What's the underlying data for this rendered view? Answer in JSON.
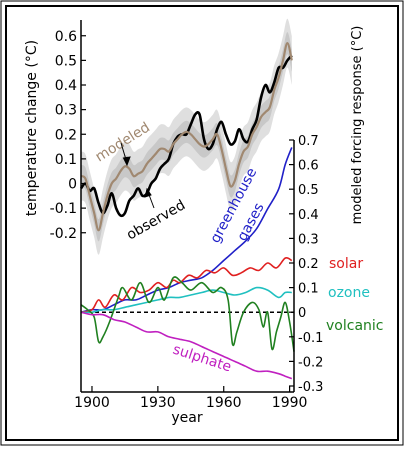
{
  "chart_data": {
    "type": "line",
    "x_axis": {
      "label": "year",
      "range": [
        1895,
        1992
      ],
      "ticks": [
        1900,
        1930,
        1960,
        1990
      ]
    },
    "top_panel": {
      "y_axis": {
        "label": "temperature change (°C)",
        "range": [
          -0.3,
          0.65
        ],
        "ticks": [
          -0.2,
          -0.1,
          0,
          0.1,
          0.2,
          0.3,
          0.4,
          0.5,
          0.6
        ],
        "tick_labels": [
          "-0.2",
          "-0.1",
          "0",
          "0.1",
          "0.2",
          "0.3",
          "0.4",
          "0.5",
          "0.6"
        ]
      },
      "series": [
        {
          "name": "observed",
          "color": "#000000",
          "x": [
            1895,
            1897,
            1899,
            1901,
            1903,
            1905,
            1907,
            1909,
            1911,
            1913,
            1915,
            1917,
            1919,
            1921,
            1923,
            1925,
            1927,
            1929,
            1931,
            1933,
            1935,
            1937,
            1939,
            1941,
            1943,
            1945,
            1947,
            1949,
            1951,
            1953,
            1955,
            1957,
            1959,
            1961,
            1963,
            1965,
            1967,
            1969,
            1971,
            1973,
            1975,
            1977,
            1979,
            1981,
            1983,
            1985,
            1987,
            1989,
            1991
          ],
          "values": [
            -0.02,
            0.0,
            -0.03,
            -0.02,
            -0.08,
            -0.12,
            -0.09,
            -0.04,
            -0.1,
            -0.13,
            -0.12,
            -0.07,
            -0.05,
            -0.02,
            -0.05,
            -0.04,
            0.0,
            0.02,
            0.06,
            0.08,
            0.1,
            0.16,
            0.19,
            0.2,
            0.2,
            0.24,
            0.28,
            0.28,
            0.18,
            0.14,
            0.16,
            0.22,
            0.25,
            0.2,
            0.16,
            0.17,
            0.22,
            0.18,
            0.17,
            0.22,
            0.26,
            0.35,
            0.4,
            0.37,
            0.41,
            0.47,
            0.47,
            0.5,
            0.52
          ]
        },
        {
          "name": "modeled",
          "color": "#a08870",
          "x": [
            1895,
            1897,
            1899,
            1901,
            1903,
            1905,
            1907,
            1909,
            1911,
            1913,
            1915,
            1917,
            1919,
            1921,
            1923,
            1925,
            1927,
            1929,
            1931,
            1933,
            1935,
            1937,
            1939,
            1941,
            1943,
            1945,
            1947,
            1949,
            1951,
            1953,
            1955,
            1957,
            1959,
            1961,
            1963,
            1965,
            1967,
            1969,
            1971,
            1973,
            1975,
            1977,
            1979,
            1981,
            1983,
            1985,
            1987,
            1989,
            1991
          ],
          "values": [
            0.03,
            0.02,
            -0.05,
            -0.12,
            -0.19,
            -0.12,
            -0.05,
            0.0,
            0.02,
            0.05,
            0.07,
            0.06,
            0.03,
            0.04,
            0.05,
            0.08,
            0.1,
            0.12,
            0.14,
            0.14,
            0.13,
            0.16,
            0.18,
            0.2,
            0.21,
            0.2,
            0.18,
            0.16,
            0.15,
            0.16,
            0.18,
            0.2,
            0.14,
            0.06,
            -0.01,
            0.01,
            0.08,
            0.13,
            0.15,
            0.2,
            0.23,
            0.27,
            0.29,
            0.31,
            0.38,
            0.43,
            0.5,
            0.57,
            0.5
          ]
        }
      ],
      "uncertainty_band": {
        "name": "modeled range",
        "color": "#c8c8c8",
        "half_width": 0.045
      },
      "annotations": [
        {
          "text": "modeled",
          "color": "#a08870"
        },
        {
          "text": "observed",
          "color": "#000000"
        }
      ]
    },
    "bottom_panel": {
      "y_axis": {
        "label": "modeled forcing response (°C)",
        "range": [
          -0.3,
          0.7
        ],
        "ticks": [
          0.7,
          0.6,
          0.5,
          0.4,
          0.3,
          0.2,
          0.1,
          0,
          -0.1,
          -0.2,
          -0.3
        ],
        "tick_labels": [
          "0.7",
          "0.6",
          "0.5",
          "0.4",
          "0.3",
          "0.2",
          "0.1",
          "0",
          "-0.1",
          "-0.2",
          "-0.3"
        ]
      },
      "zero_line": {
        "style": "dashed",
        "color": "#000000"
      },
      "series": [
        {
          "name": "greenhouse gases",
          "color": "#2020c8",
          "x": [
            1895,
            1900,
            1905,
            1910,
            1915,
            1920,
            1925,
            1930,
            1935,
            1940,
            1945,
            1950,
            1955,
            1960,
            1965,
            1970,
            1975,
            1980,
            1985,
            1988,
            1991
          ],
          "values": [
            0.0,
            0.01,
            0.01,
            0.03,
            0.05,
            0.05,
            0.07,
            0.09,
            0.1,
            0.12,
            0.13,
            0.14,
            0.17,
            0.21,
            0.25,
            0.29,
            0.34,
            0.42,
            0.5,
            0.6,
            0.67
          ]
        },
        {
          "name": "solar",
          "color": "#e02020",
          "x": [
            1895,
            1900,
            1903,
            1906,
            1910,
            1914,
            1918,
            1922,
            1926,
            1930,
            1934,
            1937,
            1940,
            1944,
            1948,
            1952,
            1956,
            1960,
            1964,
            1968,
            1972,
            1976,
            1980,
            1984,
            1988,
            1991
          ],
          "values": [
            0.0,
            0.01,
            0.05,
            0.02,
            0.07,
            0.05,
            0.1,
            0.08,
            0.09,
            0.12,
            0.1,
            0.13,
            0.12,
            0.15,
            0.14,
            0.17,
            0.16,
            0.18,
            0.15,
            0.16,
            0.18,
            0.17,
            0.2,
            0.18,
            0.22,
            0.21
          ]
        },
        {
          "name": "ozone",
          "color": "#20c0c0",
          "x": [
            1895,
            1900,
            1905,
            1910,
            1915,
            1920,
            1925,
            1930,
            1935,
            1940,
            1945,
            1950,
            1955,
            1960,
            1965,
            1970,
            1975,
            1980,
            1985,
            1988,
            1991
          ],
          "values": [
            0.0,
            0.0,
            0.01,
            0.01,
            0.02,
            0.03,
            0.04,
            0.05,
            0.06,
            0.06,
            0.07,
            0.08,
            0.09,
            0.08,
            0.07,
            0.08,
            0.1,
            0.09,
            0.06,
            0.08,
            0.08
          ]
        },
        {
          "name": "volcanic",
          "color": "#208020",
          "x": [
            1895,
            1898,
            1901,
            1903,
            1905,
            1908,
            1912,
            1914,
            1918,
            1922,
            1926,
            1930,
            1933,
            1937,
            1941,
            1945,
            1950,
            1955,
            1959,
            1962,
            1964,
            1966,
            1969,
            1973,
            1976,
            1978,
            1980,
            1982,
            1984,
            1986,
            1988,
            1990,
            1992
          ],
          "values": [
            0.03,
            0.01,
            -0.02,
            -0.12,
            -0.1,
            -0.04,
            0.06,
            0.1,
            0.05,
            0.12,
            0.04,
            0.1,
            0.05,
            0.14,
            0.12,
            0.09,
            0.12,
            0.08,
            0.1,
            0.05,
            -0.13,
            -0.08,
            0.0,
            0.04,
            0.01,
            -0.06,
            0.0,
            -0.15,
            -0.08,
            -0.02,
            0.04,
            -0.04,
            -0.16
          ]
        },
        {
          "name": "sulphate",
          "color": "#c020c0",
          "x": [
            1895,
            1900,
            1905,
            1910,
            1915,
            1920,
            1925,
            1930,
            1935,
            1940,
            1945,
            1950,
            1955,
            1960,
            1965,
            1970,
            1975,
            1980,
            1985,
            1988,
            1991
          ],
          "values": [
            0.0,
            -0.01,
            -0.01,
            -0.03,
            -0.04,
            -0.06,
            -0.08,
            -0.08,
            -0.1,
            -0.11,
            -0.12,
            -0.14,
            -0.16,
            -0.18,
            -0.2,
            -0.22,
            -0.24,
            -0.24,
            -0.25,
            -0.26,
            -0.27
          ]
        }
      ],
      "labels": [
        {
          "text": "greenhouse",
          "color": "#2020c8"
        },
        {
          "text": "gases",
          "color": "#2020c8"
        },
        {
          "text": "solar",
          "color": "#e02020"
        },
        {
          "text": "ozone",
          "color": "#20c0c0"
        },
        {
          "text": "volcanic",
          "color": "#208020"
        },
        {
          "text": "sulphate",
          "color": "#c020c0"
        }
      ]
    }
  }
}
